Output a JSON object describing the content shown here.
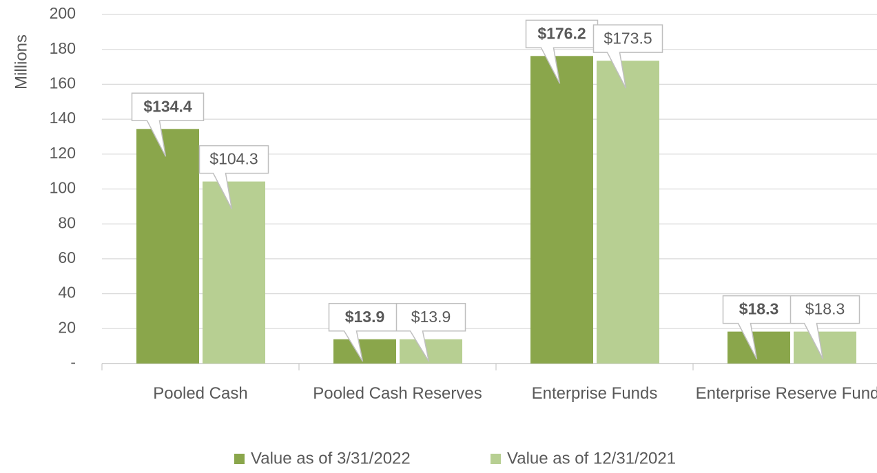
{
  "chart_data": {
    "type": "bar",
    "y_label": "Millions",
    "categories": [
      "Pooled Cash",
      "Pooled Cash Reserves",
      "Enterprise Funds",
      "Enterprise Reserve Funds"
    ],
    "series": [
      {
        "name": "Value as of 3/31/2022",
        "color": "#8aa64b",
        "values": [
          134.4,
          13.9,
          176.2,
          18.3
        ],
        "value_labels": [
          "$134.4",
          "$13.9",
          "$176.2",
          "$18.3"
        ]
      },
      {
        "name": "Value as of 12/31/2021",
        "color": "#b7cf92",
        "values": [
          104.3,
          13.9,
          173.5,
          18.3
        ],
        "value_labels": [
          "$104.3",
          "$13.9",
          "$173.5",
          "$18.3"
        ]
      }
    ],
    "ylim": [
      0,
      200
    ],
    "yticks": [
      {
        "value": 0,
        "label": "-"
      },
      20,
      40,
      60,
      80,
      100,
      120,
      140,
      160,
      180,
      200
    ],
    "grid": true,
    "legend": "bottom"
  }
}
